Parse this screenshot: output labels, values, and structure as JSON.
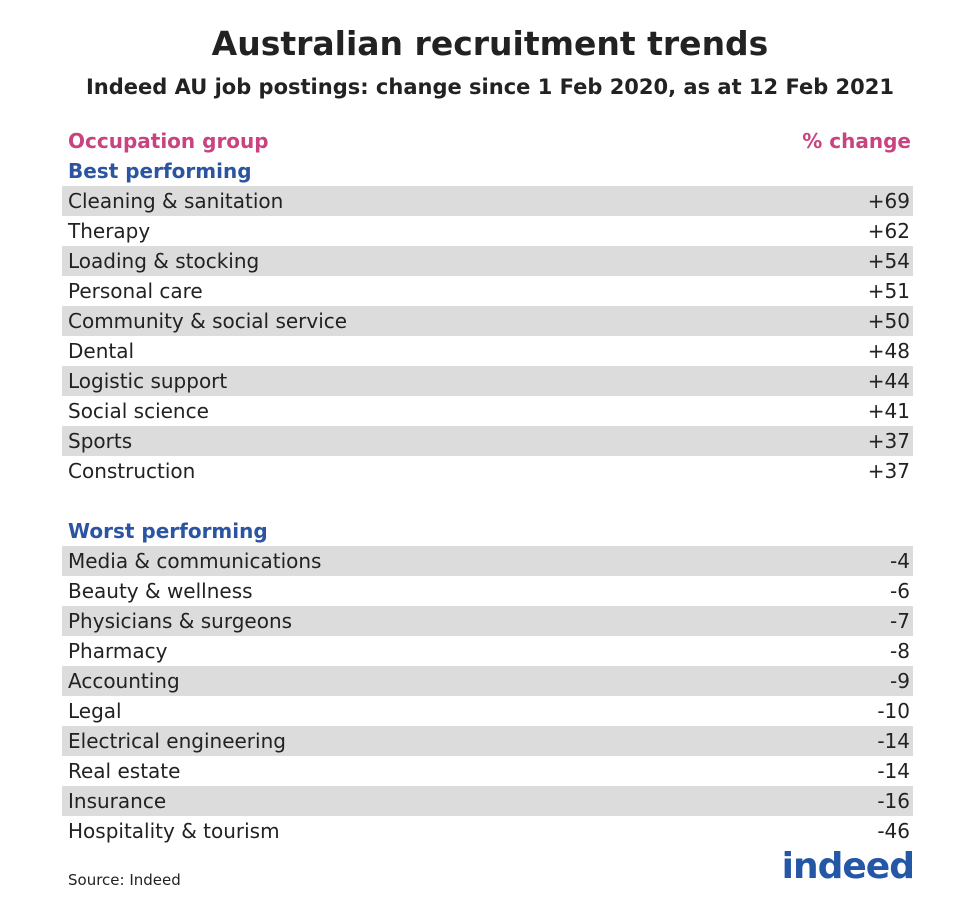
{
  "header": {
    "title": "Australian recruitment trends",
    "subtitle": "Indeed AU job postings: change since 1 Feb 2020, as at 12 Feb 2021"
  },
  "table": {
    "columns": [
      "Occupation group",
      "% change"
    ],
    "sections": [
      {
        "title": "Best performing",
        "rows": [
          [
            "Cleaning & sanitation",
            "+69"
          ],
          [
            "Therapy",
            "+62"
          ],
          [
            "Loading & stocking",
            "+54"
          ],
          [
            "Personal care",
            "+51"
          ],
          [
            "Community & social service",
            "+50"
          ],
          [
            "Dental",
            "+48"
          ],
          [
            "Logistic support",
            "+44"
          ],
          [
            "Social science",
            "+41"
          ],
          [
            "Sports",
            "+37"
          ],
          [
            "Construction",
            "+37"
          ]
        ]
      },
      {
        "title": "Worst performing",
        "rows": [
          [
            "Media & communications",
            "-4"
          ],
          [
            "Beauty & wellness",
            "-6"
          ],
          [
            "Physicians & surgeons",
            "-7"
          ],
          [
            "Pharmacy",
            "-8"
          ],
          [
            "Accounting",
            "-9"
          ],
          [
            "Legal",
            "-10"
          ],
          [
            "Electrical engineering",
            "-14"
          ],
          [
            "Real estate",
            "-14"
          ],
          [
            "Insurance",
            "-16"
          ],
          [
            "Hospitality & tourism",
            "-46"
          ]
        ]
      }
    ]
  },
  "source": "Source: Indeed",
  "logo": "indeed"
}
